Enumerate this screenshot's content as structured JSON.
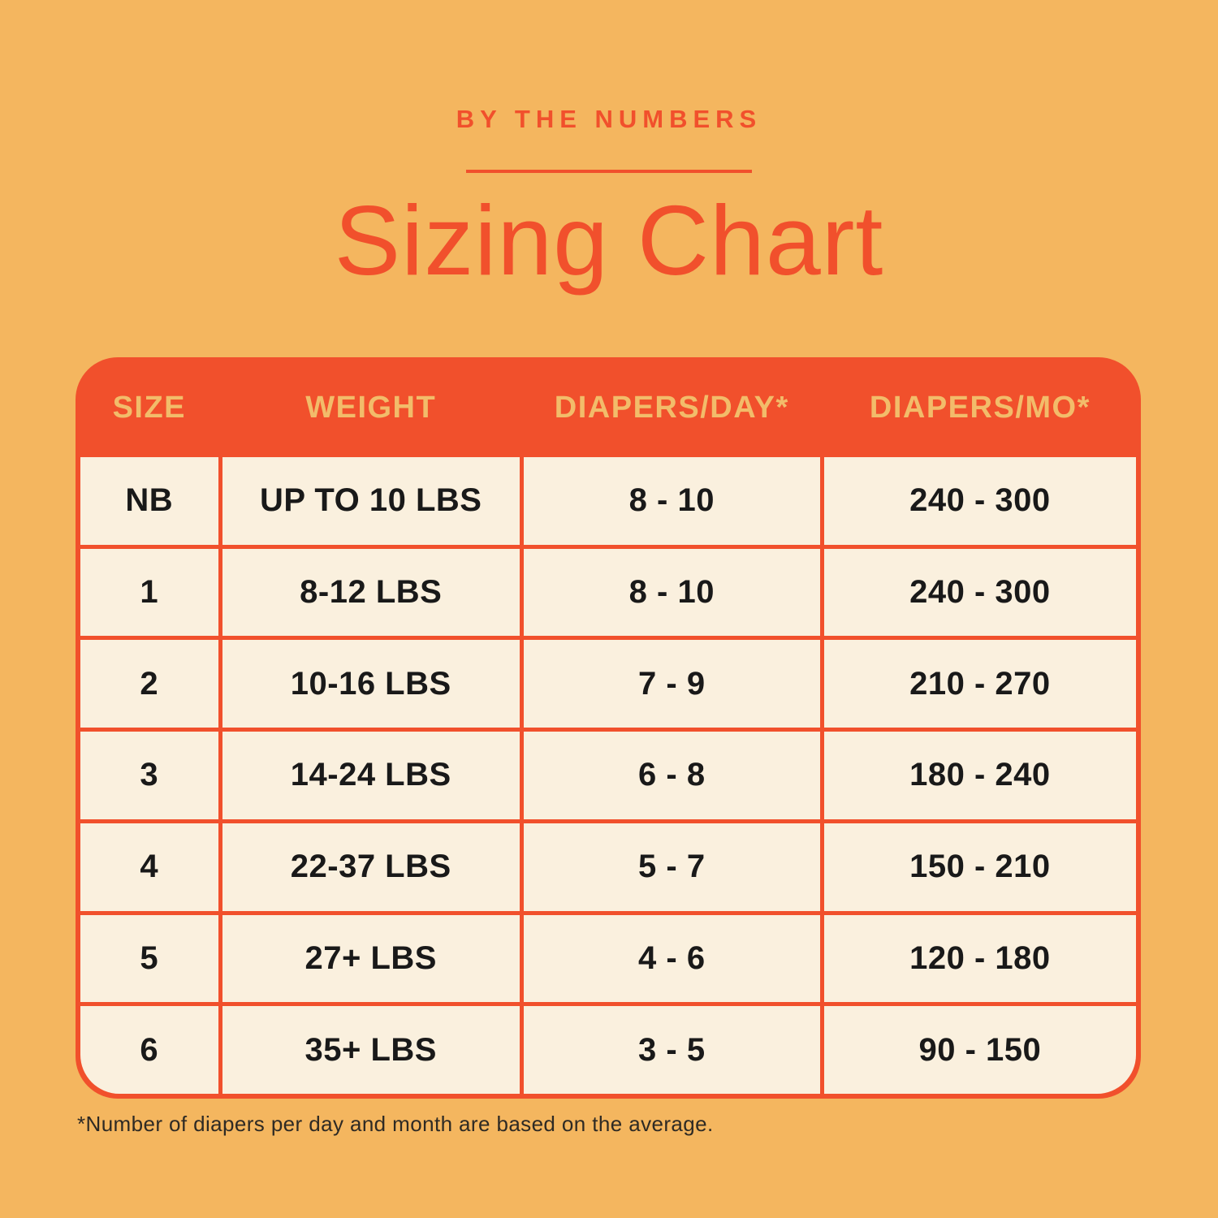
{
  "colors": {
    "background": "#F4B65F",
    "accent_orange_red": "#F1502C",
    "cell_cream": "#FAF0DE",
    "header_text_gold": "#F2BC6A",
    "body_text": "#191919"
  },
  "header": {
    "eyebrow": "BY THE NUMBERS",
    "title": "Sizing Chart"
  },
  "chart_data": {
    "type": "table",
    "title": "Sizing Chart",
    "subtitle": "BY THE NUMBERS",
    "columns": [
      "SIZE",
      "WEIGHT",
      "DIAPERS/DAY*",
      "DIAPERS/MO*"
    ],
    "rows": [
      [
        "NB",
        "UP TO 10 LBS",
        "8 - 10",
        "240 - 300"
      ],
      [
        "1",
        "8-12 LBS",
        "8 - 10",
        "240 - 300"
      ],
      [
        "2",
        "10-16 LBS",
        "7 - 9",
        "210 - 270"
      ],
      [
        "3",
        "14-24 LBS",
        "6 - 8",
        "180 - 240"
      ],
      [
        "4",
        "22-37 LBS",
        "5 - 7",
        "150 - 210"
      ],
      [
        "5",
        "27+ LBS",
        "4 - 6",
        "120 - 180"
      ],
      [
        "6",
        "35+ LBS",
        "3 - 5",
        "90 - 150"
      ]
    ],
    "footnote": "*Number of diapers per day and month are based on the average."
  }
}
